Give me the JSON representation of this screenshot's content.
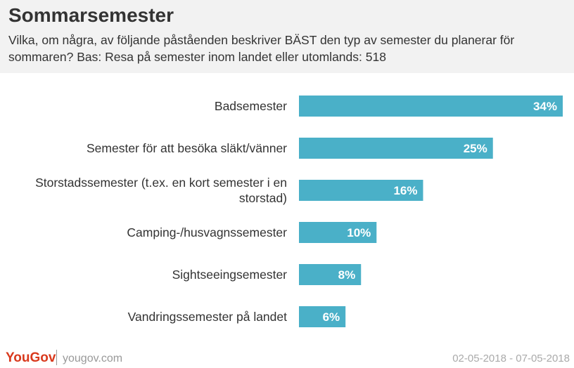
{
  "header": {
    "title": "Sommarsemester",
    "subtitle": "Vilka, om några, av följande påståenden beskriver BÄST den typ av semester du planerar för sommaren? Bas: Resa på semester inom landet eller utomlands: 518"
  },
  "footer": {
    "brand": "YouGov",
    "site": "yougov.com",
    "date_range": "02-05-2018 - 07-05-2018"
  },
  "colors": {
    "bar": "#4ab0c8",
    "label": "#333333",
    "value": "#ffffff"
  },
  "chart_data": {
    "type": "bar",
    "orientation": "horizontal",
    "categories": [
      [
        "Badsemester"
      ],
      [
        "Semester för att besöka släkt/vänner"
      ],
      [
        "Storstadssemester (t.ex. en kort semester i en",
        "storstad)"
      ],
      [
        "Camping-/husvagnssemester"
      ],
      [
        "Sightseeingsemester"
      ],
      [
        "Vandringssemester på landet"
      ]
    ],
    "values": [
      34,
      25,
      16,
      10,
      8,
      6
    ],
    "value_labels": [
      "34%",
      "25%",
      "16%",
      "10%",
      "8%",
      "6%"
    ],
    "unit": "%",
    "xlim": [
      0,
      34
    ],
    "grid": false,
    "legend": "none"
  }
}
